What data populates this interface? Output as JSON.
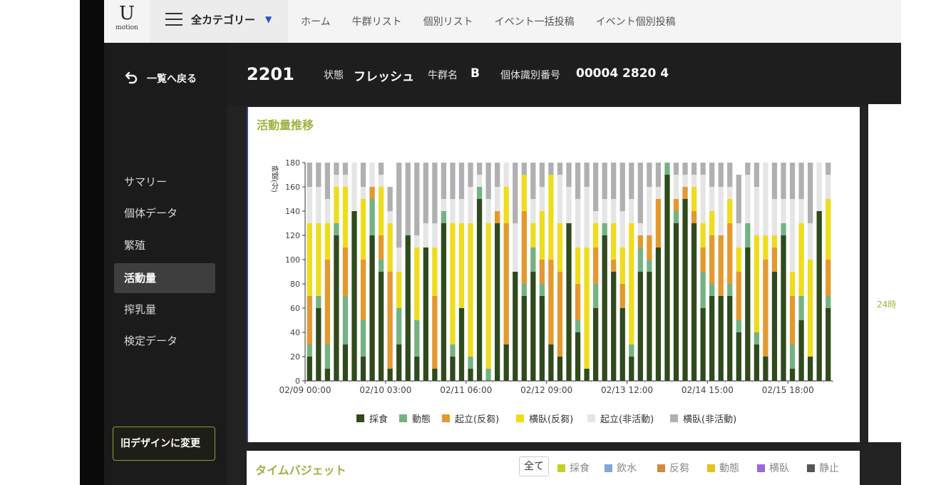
{
  "logo": {
    "letter": "U",
    "sub": "motion"
  },
  "category": {
    "label": "全カテゴリー",
    "arrow": "▼"
  },
  "nav": [
    "ホーム",
    "牛群リスト",
    "個別リスト",
    "イベント一括投稿",
    "イベント個別投稿"
  ],
  "sidebar": {
    "back_label": "一覧へ戻る",
    "items": [
      {
        "label": "サマリー",
        "active": false
      },
      {
        "label": "個体データ",
        "active": false
      },
      {
        "label": "繁殖",
        "active": false
      },
      {
        "label": "活動量",
        "active": true
      },
      {
        "label": "搾乳量",
        "active": false
      },
      {
        "label": "検定データ",
        "active": false
      }
    ],
    "old_design_button": "旧デザインに変更"
  },
  "header": {
    "cow_id": "2201",
    "status_label": "状態",
    "status_value": "フレッシュ",
    "herd_label": "牛群名",
    "herd_value": "B",
    "individual_label": "個体識別番号",
    "individual_value": "00004 2820 4"
  },
  "card": {
    "title": "活動量推移"
  },
  "right_panel": {
    "text": "24時"
  },
  "time_budget": {
    "title": "タイムバジェット",
    "all_label": "全て",
    "legend": [
      {
        "label": "採食",
        "color": "#c3cf2c"
      },
      {
        "label": "飲水",
        "color": "#7fa7d9"
      },
      {
        "label": "反芻",
        "color": "#cf8a3c"
      },
      {
        "label": "動態",
        "color": "#e2c41c"
      },
      {
        "label": "横臥",
        "color": "#9b66e0"
      },
      {
        "label": "静止",
        "color": "#555555"
      }
    ]
  },
  "chart_data": {
    "type": "bar",
    "stacked": true,
    "ylabel": "時間(分)",
    "ylim": [
      0,
      180
    ],
    "yticks": [
      0,
      20,
      40,
      60,
      80,
      100,
      120,
      140,
      160,
      180
    ],
    "xtick_labels": [
      "02/09 00:00",
      "02/10 03:00",
      "02/11 06:00",
      "02/12 09:00",
      "02/13 12:00",
      "02/14 15:00",
      "02/15 18:00"
    ],
    "bars_per_xtick": 9,
    "grid": false,
    "legend_position": "bottom",
    "series": [
      {
        "name": "採食",
        "color": "#2f4a1c"
      },
      {
        "name": "動態",
        "color": "#74b283"
      },
      {
        "name": "起立(反芻)",
        "color": "#e3992e"
      },
      {
        "name": "横臥(反芻)",
        "color": "#efdc1d"
      },
      {
        "name": "起立(非活動)",
        "color": "#e5e5e5"
      },
      {
        "name": "横臥(非活動)",
        "color": "#b0b0b3"
      }
    ],
    "stacks": [
      [
        20,
        10,
        40,
        60,
        30,
        20
      ],
      [
        60,
        10,
        0,
        60,
        30,
        20
      ],
      [
        10,
        20,
        70,
        30,
        20,
        30
      ],
      [
        120,
        10,
        0,
        30,
        10,
        10
      ],
      [
        30,
        40,
        40,
        50,
        10,
        10
      ],
      [
        140,
        0,
        0,
        0,
        40,
        0
      ],
      [
        20,
        30,
        50,
        50,
        10,
        20
      ],
      [
        120,
        30,
        10,
        0,
        20,
        0
      ],
      [
        90,
        10,
        20,
        40,
        10,
        10
      ],
      [
        10,
        0,
        80,
        40,
        10,
        20
      ],
      [
        30,
        30,
        0,
        30,
        20,
        70
      ],
      [
        120,
        0,
        0,
        0,
        0,
        60
      ],
      [
        20,
        30,
        0,
        60,
        10,
        60
      ],
      [
        110,
        0,
        0,
        0,
        20,
        50
      ],
      [
        10,
        0,
        60,
        40,
        20,
        50
      ],
      [
        130,
        10,
        0,
        0,
        10,
        30
      ],
      [
        20,
        10,
        0,
        100,
        20,
        30
      ],
      [
        60,
        0,
        0,
        70,
        20,
        30
      ],
      [
        10,
        10,
        0,
        110,
        30,
        20
      ],
      [
        150,
        10,
        0,
        0,
        10,
        10
      ],
      [
        0,
        10,
        0,
        120,
        20,
        30
      ],
      [
        130,
        0,
        10,
        0,
        20,
        20
      ],
      [
        30,
        0,
        100,
        30,
        20,
        0
      ],
      [
        90,
        0,
        0,
        0,
        40,
        50
      ],
      [
        70,
        10,
        60,
        30,
        0,
        10
      ],
      [
        90,
        20,
        0,
        20,
        20,
        30
      ],
      [
        70,
        10,
        20,
        40,
        20,
        20
      ],
      [
        30,
        0,
        70,
        70,
        0,
        10
      ],
      [
        20,
        0,
        70,
        40,
        40,
        10
      ],
      [
        130,
        0,
        0,
        0,
        30,
        20
      ],
      [
        40,
        10,
        30,
        30,
        40,
        30
      ],
      [
        10,
        0,
        0,
        100,
        50,
        20
      ],
      [
        60,
        20,
        30,
        20,
        10,
        40
      ],
      [
        120,
        10,
        0,
        0,
        20,
        30
      ],
      [
        90,
        0,
        10,
        30,
        20,
        30
      ],
      [
        60,
        0,
        20,
        30,
        30,
        40
      ],
      [
        20,
        10,
        0,
        100,
        20,
        30
      ],
      [
        90,
        20,
        10,
        0,
        10,
        50
      ],
      [
        90,
        10,
        20,
        0,
        40,
        20
      ],
      [
        110,
        0,
        40,
        0,
        10,
        20
      ],
      [
        170,
        10,
        0,
        0,
        0,
        0
      ],
      [
        130,
        10,
        10,
        0,
        20,
        10
      ],
      [
        150,
        0,
        10,
        0,
        10,
        10
      ],
      [
        130,
        0,
        10,
        20,
        10,
        10
      ],
      [
        60,
        30,
        20,
        20,
        40,
        10
      ],
      [
        70,
        10,
        40,
        20,
        20,
        20
      ],
      [
        70,
        0,
        50,
        0,
        40,
        20
      ],
      [
        70,
        10,
        50,
        20,
        10,
        20
      ],
      [
        40,
        10,
        40,
        20,
        20,
        40
      ],
      [
        110,
        20,
        0,
        0,
        40,
        10
      ],
      [
        30,
        10,
        0,
        80,
        40,
        20
      ],
      [
        20,
        0,
        80,
        20,
        60,
        0
      ],
      [
        90,
        0,
        20,
        10,
        30,
        30
      ],
      [
        120,
        10,
        0,
        0,
        20,
        30
      ],
      [
        10,
        20,
        40,
        20,
        60,
        30
      ],
      [
        50,
        20,
        0,
        60,
        20,
        30
      ],
      [
        20,
        0,
        0,
        80,
        30,
        50
      ],
      [
        140,
        0,
        0,
        0,
        40,
        0
      ],
      [
        60,
        10,
        30,
        50,
        20,
        10
      ]
    ]
  }
}
